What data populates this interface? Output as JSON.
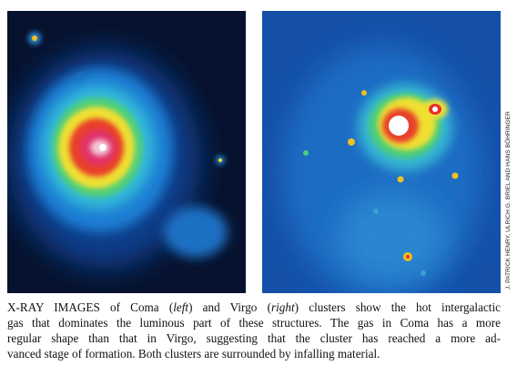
{
  "figure": {
    "credit": "J. PATRICK HENRY, ULRICH G. BRIEL AND HANS BÖHRINGER",
    "caption": {
      "line1": [
        "X-RAY IMAGES of Coma (",
        "left",
        ") and Virgo (",
        "right",
        ") clusters show the hot intergalactic"
      ],
      "line2": "gas that dominates the luminous part of these structures. The gas in Coma has a more",
      "line3": "regular shape than that in Virgo, suggesting that the cluster has reached a more ad-",
      "line4": "vanced stage of formation. Both clusters are surrounded by infalling material."
    }
  }
}
